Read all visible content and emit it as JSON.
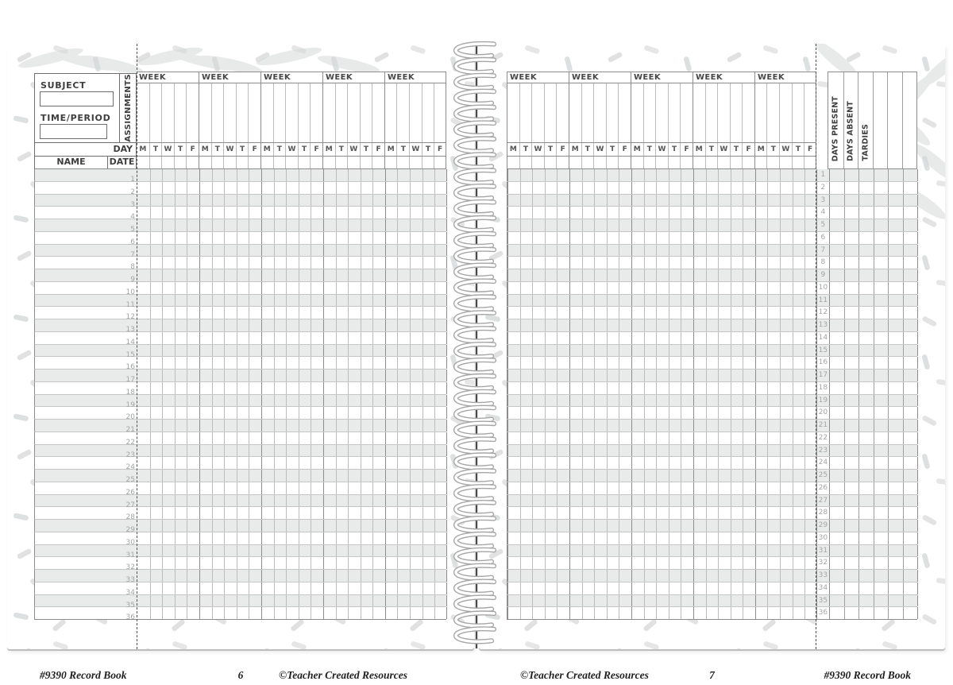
{
  "labels": {
    "subject": "SUBJECT",
    "time_period": "TIME/PERIOD",
    "assignments": "ASSIGNMENTS",
    "day": "DAY",
    "name": "NAME",
    "date": "DATE",
    "week": "WEEK"
  },
  "layout": {
    "weeks_per_page": 5,
    "day_letters": [
      "M",
      "T",
      "W",
      "T",
      "F"
    ],
    "summary_column_count": 6
  },
  "summary_columns": [
    "DAYS PRESENT",
    "DAYS ABSENT",
    "TARDIES"
  ],
  "rows": [
    1,
    2,
    3,
    4,
    5,
    6,
    7,
    8,
    9,
    10,
    11,
    12,
    13,
    14,
    15,
    16,
    17,
    18,
    19,
    20,
    21,
    22,
    23,
    24,
    25,
    26,
    27,
    28,
    29,
    30,
    31,
    32,
    33,
    34,
    35,
    36
  ],
  "left_page": {
    "footer_left": "#9390 Record Book",
    "page_number": "6",
    "footer_right": "©Teacher Created Resources"
  },
  "right_page": {
    "footer_left": "©Teacher Created Resources",
    "page_number": "7",
    "footer_right": "#9390 Record Book"
  },
  "colors": {
    "shade": "#e9eaea",
    "line_minor": "#bcbcbc",
    "line_major": "#8c8c8c",
    "line_summary": "#9e9e9e",
    "box_border": "#6e6e6e",
    "ink": "#3e3e3e",
    "muted": "#a2a6a6",
    "dash": "#4f4f4f",
    "footer_ink": "#1f1f1f",
    "confetti": "#dedede",
    "wisp": "#d6dada",
    "coil_outline": "#a6a6a6",
    "spine": "#4a4a4a"
  }
}
